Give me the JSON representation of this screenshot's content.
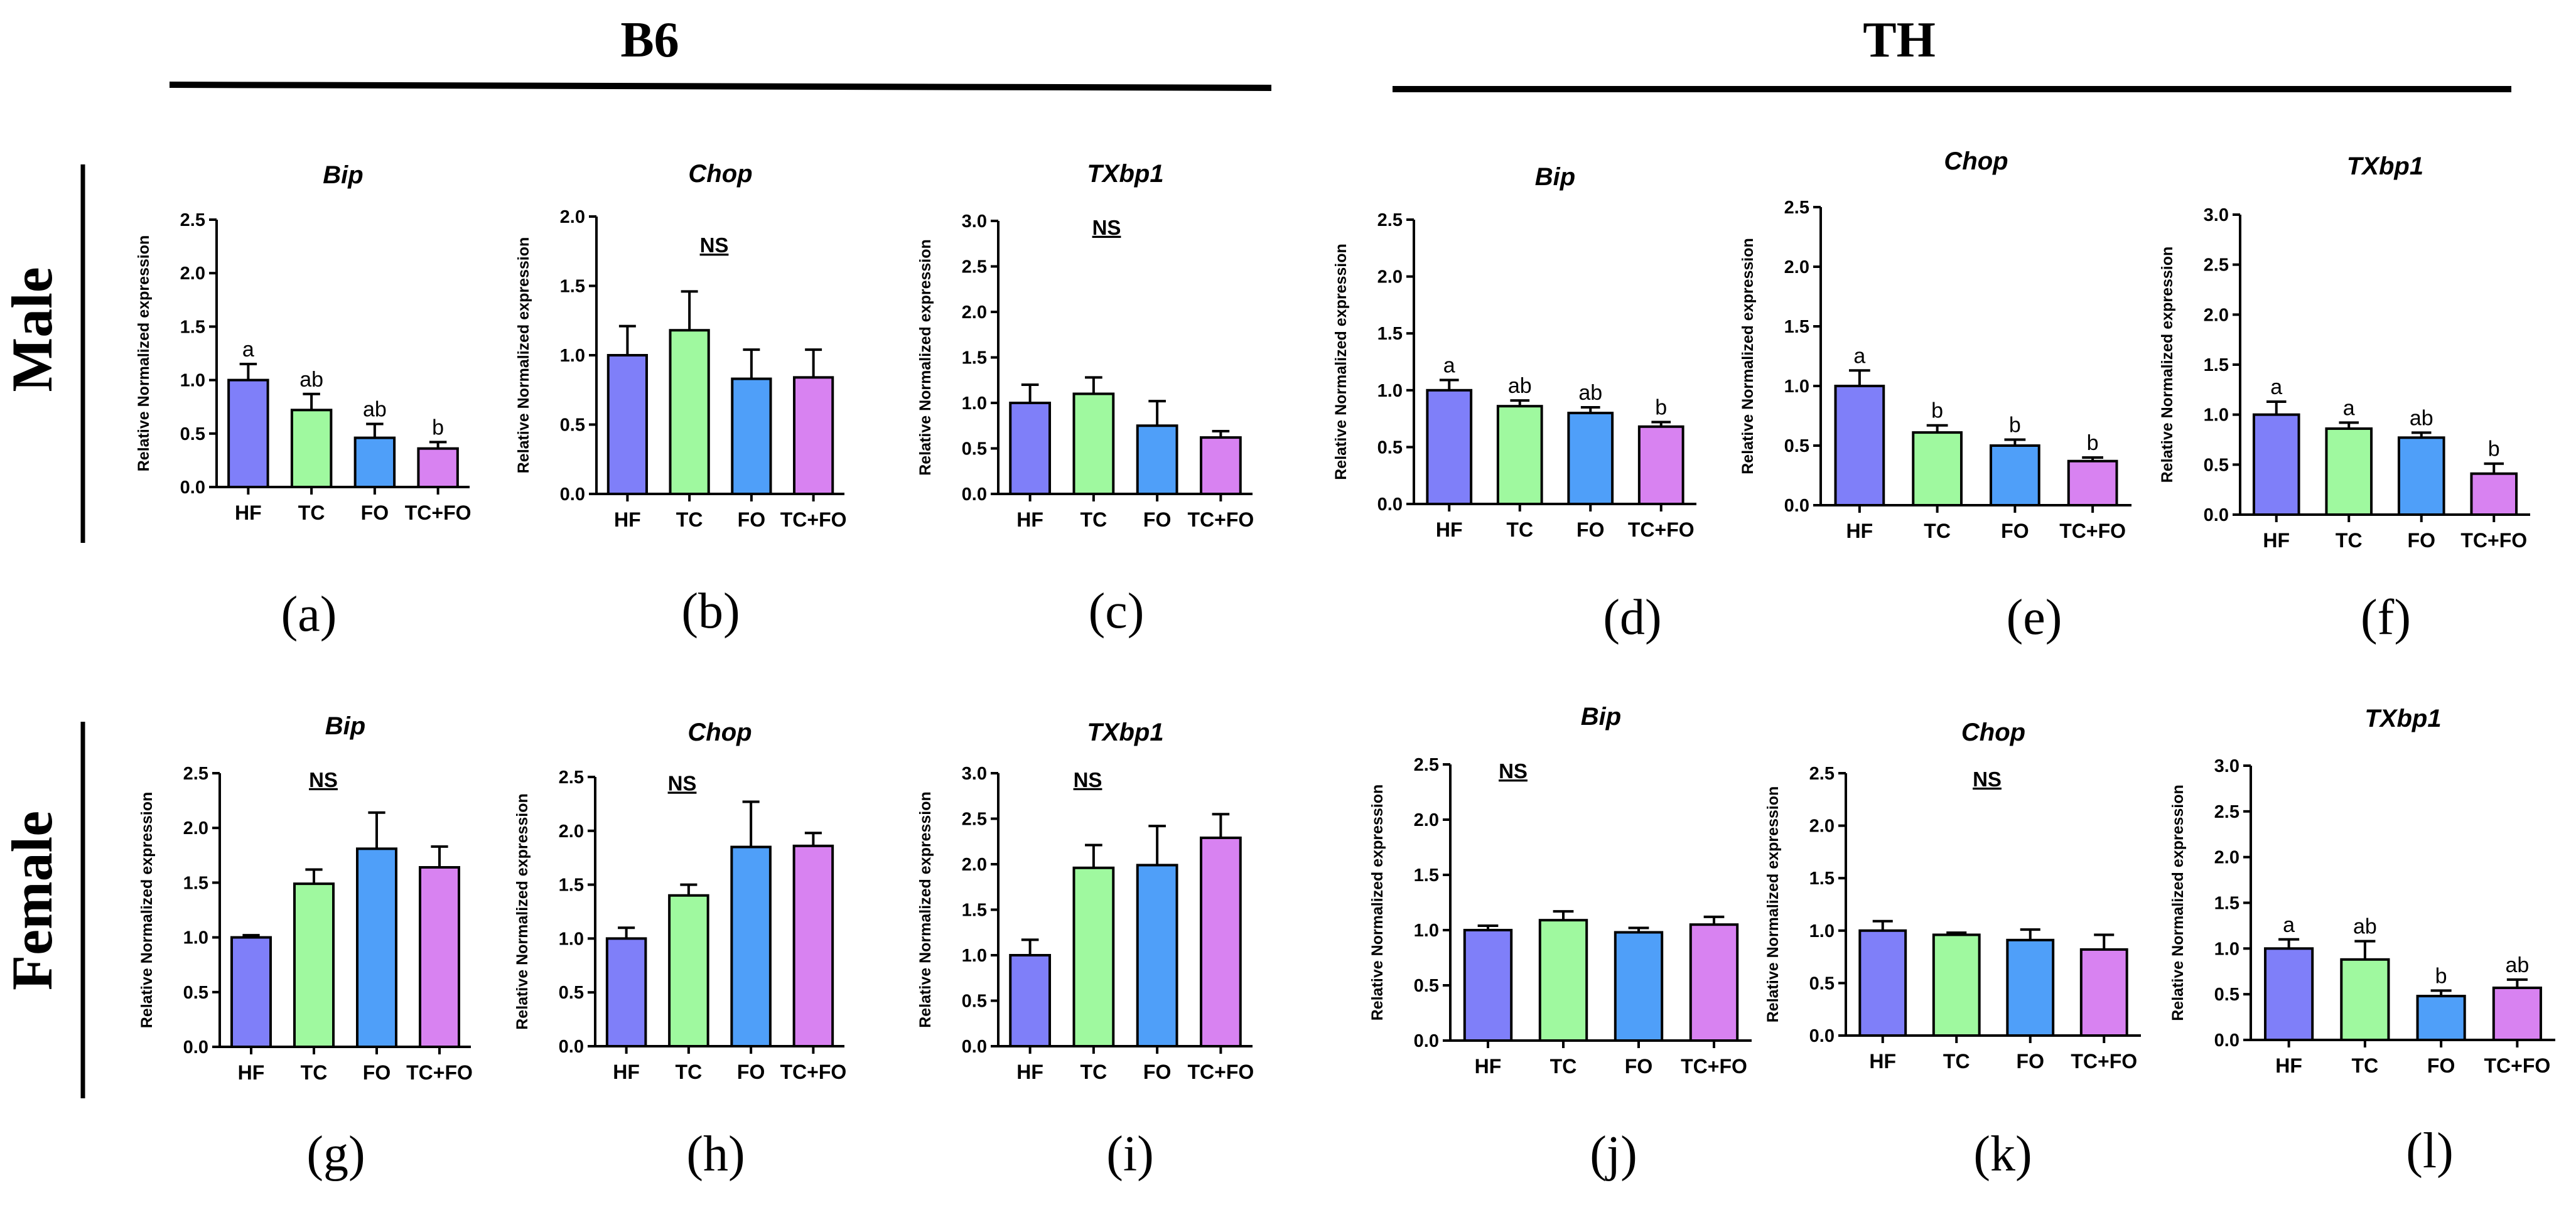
{
  "colors": {
    "HF": "#7f7ff9",
    "TC": "#9ff99f",
    "FO": "#4f9ff9",
    "TC+FO": "#d882f1",
    "stroke": "#000000"
  },
  "headers": {
    "left": "B6",
    "right": "TH"
  },
  "row_labels": {
    "male": "Male",
    "female": "Female"
  },
  "panel_letters": [
    "(a)",
    "(b)",
    "(c)",
    "(d)",
    "(e)",
    "(f)",
    "(g)",
    "(h)",
    "(i)",
    "(j)",
    "(k)",
    "(l)"
  ],
  "chart_data": [
    {
      "id": "a",
      "type": "bar",
      "title": "Bip",
      "ylabel": "Relative Normalized expression",
      "categories": [
        "HF",
        "TC",
        "FO",
        "TC+FO"
      ],
      "values": [
        1.0,
        0.72,
        0.46,
        0.36
      ],
      "errors": [
        0.15,
        0.15,
        0.13,
        0.06
      ],
      "sig": [
        "a",
        "ab",
        "ab",
        "b"
      ],
      "ylim": [
        0,
        2.5
      ],
      "yticks": [
        "0.0",
        "0.5",
        "1.0",
        "1.5",
        "2.0",
        "2.5"
      ],
      "ns": ""
    },
    {
      "id": "b",
      "type": "bar",
      "title": "Chop",
      "ylabel": "Relative Normalized expression",
      "categories": [
        "HF",
        "TC",
        "FO",
        "TC+FO"
      ],
      "values": [
        1.0,
        1.18,
        0.83,
        0.84
      ],
      "errors": [
        0.21,
        0.28,
        0.21,
        0.2
      ],
      "sig": [
        "",
        "",
        "",
        ""
      ],
      "ylim": [
        0,
        2.0
      ],
      "yticks": [
        "0.0",
        "0.5",
        "1.0",
        "1.5",
        "2.0"
      ],
      "ns": "NS"
    },
    {
      "id": "c",
      "type": "bar",
      "title": "TXbp1",
      "ylabel": "Relative Normalized expression",
      "categories": [
        "HF",
        "TC",
        "FO",
        "TC+FO"
      ],
      "values": [
        1.0,
        1.1,
        0.75,
        0.62
      ],
      "errors": [
        0.2,
        0.18,
        0.27,
        0.07
      ],
      "sig": [
        "",
        "",
        "",
        ""
      ],
      "ylim": [
        0,
        3.0
      ],
      "yticks": [
        "0.0",
        "0.5",
        "1.0",
        "1.5",
        "2.0",
        "2.5",
        "3.0"
      ],
      "ns": "NS"
    },
    {
      "id": "d",
      "type": "bar",
      "title": "Bip",
      "ylabel": "Relative Normalized expression",
      "categories": [
        "HF",
        "TC",
        "FO",
        "TC+FO"
      ],
      "values": [
        1.0,
        0.86,
        0.8,
        0.68
      ],
      "errors": [
        0.09,
        0.05,
        0.05,
        0.04
      ],
      "sig": [
        "a",
        "ab",
        "ab",
        "b"
      ],
      "ylim": [
        0,
        2.5
      ],
      "yticks": [
        "0.0",
        "0.5",
        "1.0",
        "1.5",
        "2.0",
        "2.5"
      ],
      "ns": ""
    },
    {
      "id": "e",
      "type": "bar",
      "title": "Chop",
      "ylabel": "Relative Normalized expression",
      "categories": [
        "HF",
        "TC",
        "FO",
        "TC+FO"
      ],
      "values": [
        1.0,
        0.61,
        0.5,
        0.37
      ],
      "errors": [
        0.13,
        0.06,
        0.05,
        0.03
      ],
      "sig": [
        "a",
        "b",
        "b",
        "b"
      ],
      "ylim": [
        0,
        2.5
      ],
      "yticks": [
        "0.0",
        "0.5",
        "1.0",
        "1.5",
        "2.0",
        "2.5"
      ],
      "ns": ""
    },
    {
      "id": "f",
      "type": "bar",
      "title": "TXbp1",
      "ylabel": "Relative Normalized expression",
      "categories": [
        "HF",
        "TC",
        "FO",
        "TC+FO"
      ],
      "values": [
        1.0,
        0.86,
        0.77,
        0.41
      ],
      "errors": [
        0.13,
        0.06,
        0.05,
        0.1
      ],
      "sig": [
        "a",
        "a",
        "ab",
        "b"
      ],
      "ylim": [
        0,
        3.0
      ],
      "yticks": [
        "0.0",
        "0.5",
        "1.0",
        "1.5",
        "2.0",
        "2.5",
        "3.0"
      ],
      "ns": ""
    },
    {
      "id": "g",
      "type": "bar",
      "title": "Bip",
      "ylabel": "Relative Normalized expression",
      "categories": [
        "HF",
        "TC",
        "FO",
        "TC+FO"
      ],
      "values": [
        1.0,
        1.49,
        1.81,
        1.64
      ],
      "errors": [
        0.02,
        0.13,
        0.33,
        0.19
      ],
      "sig": [
        "",
        "",
        "",
        ""
      ],
      "ylim": [
        0,
        2.5
      ],
      "yticks": [
        "0.0",
        "0.5",
        "1.0",
        "1.5",
        "2.0",
        "2.5"
      ],
      "ns": "NS"
    },
    {
      "id": "h",
      "type": "bar",
      "title": "Chop",
      "ylabel": "Relative Normalized expression",
      "categories": [
        "HF",
        "TC",
        "FO",
        "TC+FO"
      ],
      "values": [
        1.0,
        1.4,
        1.85,
        1.86
      ],
      "errors": [
        0.1,
        0.1,
        0.42,
        0.12
      ],
      "sig": [
        "",
        "",
        "",
        ""
      ],
      "ylim": [
        0,
        2.5
      ],
      "yticks": [
        "0.0",
        "0.5",
        "1.0",
        "1.5",
        "2.0",
        "2.5"
      ],
      "ns": "NS"
    },
    {
      "id": "i",
      "type": "bar",
      "title": "TXbp1",
      "ylabel": "Relative Normalized expression",
      "categories": [
        "HF",
        "TC",
        "FO",
        "TC+FO"
      ],
      "values": [
        1.0,
        1.96,
        1.99,
        2.29
      ],
      "errors": [
        0.17,
        0.25,
        0.43,
        0.26
      ],
      "sig": [
        "",
        "",
        "",
        ""
      ],
      "ylim": [
        0,
        3.0
      ],
      "yticks": [
        "0.0",
        "0.5",
        "1.0",
        "1.5",
        "2.0",
        "2.5",
        "3.0"
      ],
      "ns": "NS"
    },
    {
      "id": "j",
      "type": "bar",
      "title": "Bip",
      "ylabel": "Relative Normalized expression",
      "categories": [
        "HF",
        "TC",
        "FO",
        "TC+FO"
      ],
      "values": [
        1.0,
        1.09,
        0.98,
        1.05
      ],
      "errors": [
        0.04,
        0.08,
        0.04,
        0.07
      ],
      "sig": [
        "",
        "",
        "",
        ""
      ],
      "ylim": [
        0,
        2.5
      ],
      "yticks": [
        "0.0",
        "0.5",
        "1.0",
        "1.5",
        "2.0",
        "2.5"
      ],
      "ns": "NS"
    },
    {
      "id": "k",
      "type": "bar",
      "title": "Chop",
      "ylabel": "Relative Normalized expression",
      "categories": [
        "HF",
        "TC",
        "FO",
        "TC+FO"
      ],
      "values": [
        1.0,
        0.96,
        0.91,
        0.82
      ],
      "errors": [
        0.09,
        0.02,
        0.1,
        0.14
      ],
      "sig": [
        "",
        "",
        "",
        ""
      ],
      "ylim": [
        0,
        2.5
      ],
      "yticks": [
        "0.0",
        "0.5",
        "1.0",
        "1.5",
        "2.0",
        "2.5"
      ],
      "ns": "NS"
    },
    {
      "id": "l",
      "type": "bar",
      "title": "TXbp1",
      "ylabel": "Relative Normalized expression",
      "categories": [
        "HF",
        "TC",
        "FO",
        "TC+FO"
      ],
      "values": [
        1.0,
        0.88,
        0.48,
        0.57
      ],
      "errors": [
        0.1,
        0.2,
        0.06,
        0.09
      ],
      "sig": [
        "a",
        "ab",
        "b",
        "ab"
      ],
      "ylim": [
        0,
        3.0
      ],
      "yticks": [
        "0.0",
        "0.5",
        "1.0",
        "1.5",
        "2.0",
        "2.5",
        "3.0"
      ],
      "ns": ""
    }
  ]
}
